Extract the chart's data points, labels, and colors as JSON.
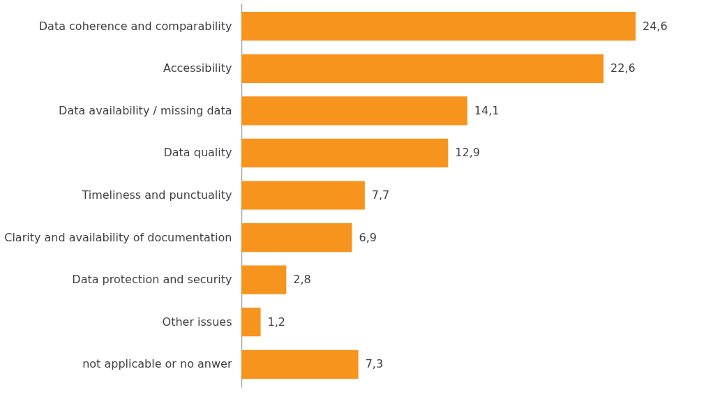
{
  "chart_data": {
    "type": "bar",
    "orientation": "horizontal",
    "categories": [
      "Data coherence and comparability",
      "Accessibility",
      "Data availability / missing data",
      "Data quality",
      "Timeliness and punctuality",
      "Clarity and availability of documentation",
      "Data protection and security",
      "Other issues",
      "not applicable or no anwer"
    ],
    "values": [
      24.6,
      22.6,
      14.1,
      12.9,
      7.7,
      6.9,
      2.8,
      1.2,
      7.3
    ],
    "value_labels": [
      "24,6",
      "22,6",
      "14,1",
      "12,9",
      "7,7",
      "6,9",
      "2,8",
      "1,2",
      "7,3"
    ],
    "color": "#f7941d",
    "tick_labels": "y"
  }
}
